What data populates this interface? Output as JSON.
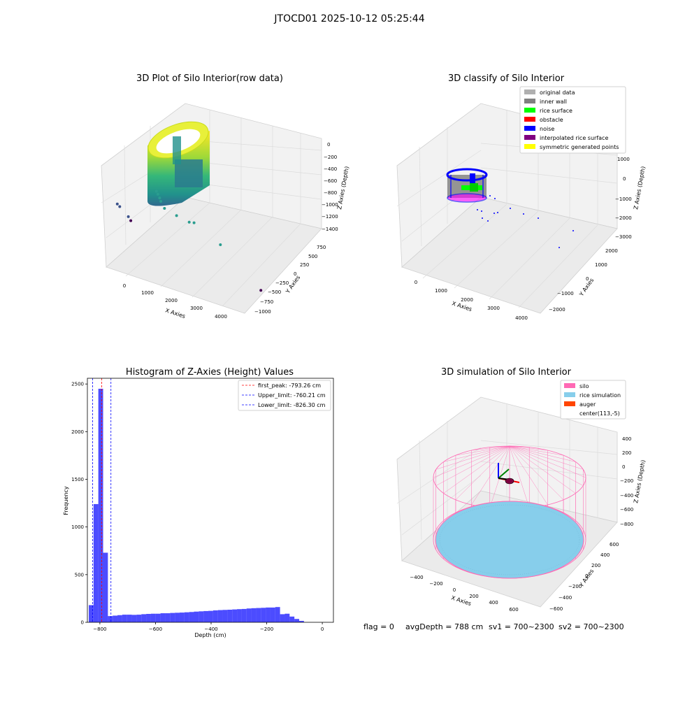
{
  "figure": {
    "suptitle": "JTOCD01 2025-10-12 05:25:44",
    "footer": {
      "flag": "flag = 0",
      "avg_depth": "avgDepth = 788 cm",
      "sv1": "sv1 = 700~2300",
      "sv2": "sv2 = 700~2300"
    }
  },
  "chart_data": [
    {
      "type": "scatter",
      "projection": "3d",
      "title": "3D Plot of Silo Interior(row data)",
      "xlabel": "X Axies",
      "ylabel": "Y Axies",
      "zlabel": "Z Axies (Depth)",
      "x_ticks": [
        "0",
        "1000",
        "2000",
        "3000",
        "4000"
      ],
      "y_ticks": [
        "750",
        "500",
        "250",
        "0",
        "−250",
        "−500",
        "−750",
        "−1000"
      ],
      "z_ticks": [
        "0",
        "−200",
        "−400",
        "−600",
        "−800",
        "−1000",
        "−1200",
        "−1400"
      ],
      "colormap": "viridis",
      "points": [
        {
          "x": 1950,
          "y": 250,
          "z": -870
        },
        {
          "x": 1960,
          "y": 230,
          "z": -900
        },
        {
          "x": 1980,
          "y": 210,
          "z": -940
        },
        {
          "x": 2000,
          "y": 200,
          "z": -980
        },
        {
          "x": 2050,
          "y": 160,
          "z": -1050
        },
        {
          "x": 2400,
          "y": 100,
          "z": -1080
        },
        {
          "x": 2800,
          "y": 50,
          "z": -1100
        },
        {
          "x": 2950,
          "y": 30,
          "z": -1080
        },
        {
          "x": 3450,
          "y": -200,
          "z": -1200
        },
        {
          "x": 700,
          "y": 400,
          "z": -1280
        },
        {
          "x": 750,
          "y": 380,
          "z": -1300
        },
        {
          "x": 900,
          "y": 300,
          "z": -1380
        },
        {
          "x": 950,
          "y": 280,
          "z": -1420
        },
        {
          "x": 3300,
          "y": -900,
          "z": -1450
        }
      ]
    },
    {
      "type": "scatter",
      "projection": "3d",
      "title": "3D classify of Silo Interior",
      "xlabel": "X Axies",
      "ylabel": "Y Axies",
      "zlabel": "Z Axies (Depth)",
      "x_ticks": [
        "0",
        "1000",
        "2000",
        "3000",
        "4000"
      ],
      "y_ticks": [
        "2000",
        "1000",
        "0",
        "−1000",
        "−2000"
      ],
      "z_ticks": [
        "1000",
        "0",
        "−1000",
        "−2000",
        "−3000"
      ],
      "legend": {
        "position": "top-right",
        "entries": [
          {
            "label": "original data",
            "color": "#b0b0b0"
          },
          {
            "label": "inner wall",
            "color": "#808080"
          },
          {
            "label": "rice surface",
            "color": "#00ff00"
          },
          {
            "label": "obstacle",
            "color": "#ff0000"
          },
          {
            "label": "noise",
            "color": "#0000ff"
          },
          {
            "label": "interpolated rice surface",
            "color": "#800080"
          },
          {
            "label": "symmetric generated points",
            "color": "#ffff00"
          }
        ]
      }
    },
    {
      "type": "bar",
      "title": "Histogram of Z-Axies (Height) Values",
      "xlabel": "Depth (cm)",
      "ylabel": "Frequency",
      "xlim": [
        -845,
        40
      ],
      "ylim": [
        0,
        2560
      ],
      "x_ticks": [
        -800,
        -600,
        -400,
        -200,
        0
      ],
      "x_tick_labels": [
        "−800",
        "−600",
        "−400",
        "−200",
        "0"
      ],
      "y_ticks": [
        0,
        500,
        1000,
        1500,
        2000,
        2500
      ],
      "bar_color": "#0000ff",
      "bin_start": -840,
      "bin_width": 17.2,
      "values": [
        180,
        1240,
        2450,
        730,
        65,
        70,
        75,
        80,
        80,
        78,
        80,
        85,
        88,
        90,
        90,
        95,
        95,
        98,
        100,
        102,
        105,
        108,
        112,
        115,
        118,
        120,
        125,
        128,
        130,
        132,
        135,
        138,
        140,
        145,
        148,
        150,
        152,
        155,
        155,
        160,
        85,
        90,
        60,
        35,
        15
      ],
      "reference_lines": [
        {
          "label": "first_peak: -793.26 cm",
          "x": -793.26,
          "color": "#ff0000"
        },
        {
          "label": "Upper_limit: -760.21 cm",
          "x": -760.21,
          "color": "#0000ff"
        },
        {
          "label": "Lower_limit: -826.30 cm",
          "x": -826.3,
          "color": "#0000ff"
        }
      ],
      "legend_position": "top-right"
    },
    {
      "type": "surface",
      "projection": "3d",
      "title": "3D simulation of Silo Interior",
      "xlabel": "X Axies",
      "ylabel": "Y Axies",
      "zlabel": "Z Axies (Depth)",
      "x_ticks": [
        "−400",
        "−200",
        "0",
        "200",
        "400",
        "600"
      ],
      "y_ticks": [
        "600",
        "400",
        "200",
        "0",
        "−200",
        "−400",
        "−600"
      ],
      "z_ticks": [
        "400",
        "200",
        "0",
        "−200",
        "−400",
        "−600",
        "−800"
      ],
      "legend": {
        "position": "top-right",
        "entries": [
          {
            "label": "silo",
            "color": "#ff69b4"
          },
          {
            "label": "rice simulation",
            "color": "#87ceeb"
          },
          {
            "label": "auger",
            "color": "#ff4500"
          },
          {
            "label": "center(113,-5)",
            "color": "none"
          }
        ]
      }
    }
  ]
}
